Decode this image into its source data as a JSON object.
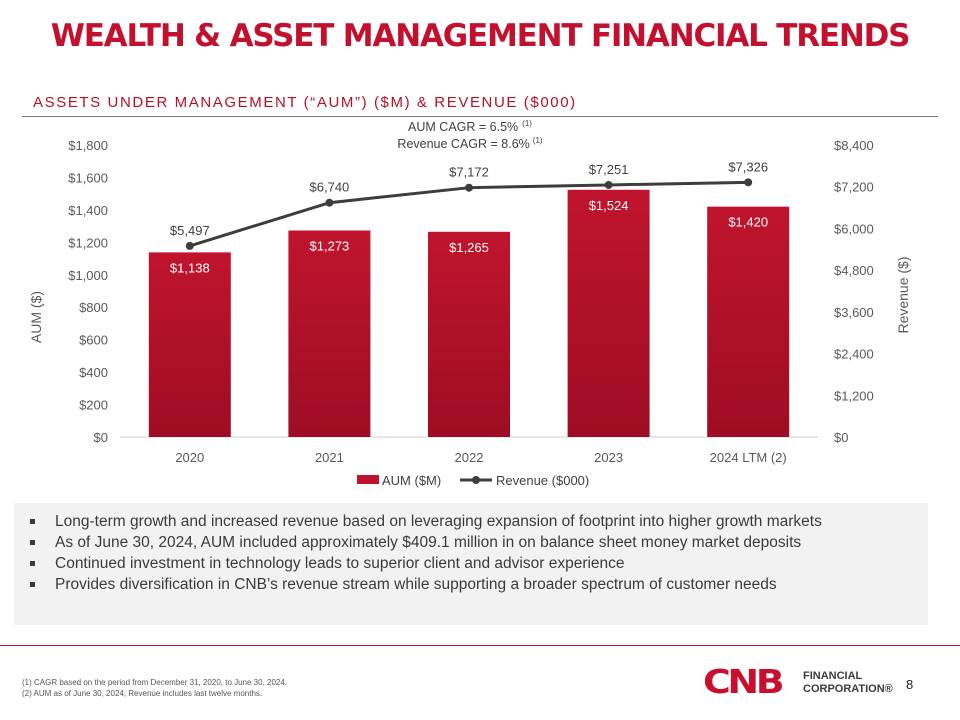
{
  "page": {
    "title": "WEALTH & ASSET MANAGEMENT FINANCIAL TRENDS",
    "subtitle": "ASSETS UNDER MANAGEMENT (“AUM”) ($M) & REVENUE ($000)",
    "page_number": "8",
    "footnotes": [
      "(1) CAGR based on the period from December 31, 2020, to June 30, 2024.",
      "(2) AUM as of June 30, 2024; Revenue includes last twelve months."
    ],
    "logo": {
      "mark": "CNB",
      "line1": "FINANCIAL",
      "line2": "CORPORATION®"
    },
    "bullets": [
      "Long-term growth and increased revenue based on leveraging expansion of footprint into higher growth markets",
      "As of June 30, 2024, AUM included approximately $409.1 million in on balance sheet money market deposits",
      "Continued investment in technology leads to superior client and advisor experience",
      "Provides diversification in CNB’s revenue stream while supporting a broader spectrum of customer needs"
    ]
  },
  "colors": {
    "accent": "#c2112e",
    "bar": "#c0142e",
    "bar_dark": "#9e0d24",
    "line": "#3d3d3d",
    "axis_text": "#595959"
  },
  "chart_data": {
    "type": "bar",
    "categories": [
      "2020",
      "2021",
      "2022",
      "2023",
      "2024 LTM (2)"
    ],
    "series": [
      {
        "name": "AUM ($M)",
        "kind": "bar",
        "axis": "left",
        "values": [
          1138,
          1273,
          1265,
          1524,
          1420
        ],
        "labels": [
          "$1,138",
          "$1,273",
          "$1,265",
          "$1,524",
          "$1,420"
        ]
      },
      {
        "name": "Revenue ($000)",
        "kind": "line",
        "axis": "right",
        "values": [
          5497,
          6740,
          7172,
          7251,
          7326
        ],
        "labels": [
          "$5,497",
          "$6,740",
          "$7,172",
          "$7,251",
          "$7,326"
        ]
      }
    ],
    "ylabel": "AUM ($)",
    "y2label": "Revenue ($)",
    "ylim": [
      0,
      1800
    ],
    "y2lim": [
      0,
      8400
    ],
    "yticks": [
      0,
      200,
      400,
      600,
      800,
      1000,
      1200,
      1400,
      1600,
      1800
    ],
    "ytick_labels": [
      "$0",
      "$200",
      "$400",
      "$600",
      "$800",
      "$1,000",
      "$1,200",
      "$1,400",
      "$1,600",
      "$1,800"
    ],
    "y2ticks": [
      0,
      1200,
      2400,
      3600,
      4800,
      6000,
      7200,
      8400
    ],
    "y2tick_labels": [
      "$0",
      "$1,200",
      "$2,400",
      "$3,600",
      "$4,800",
      "$6,000",
      "$7,200",
      "$8,400"
    ],
    "annotation": {
      "aum_cagr": "AUM CAGR = 6.5%",
      "revenue_cagr": "Revenue CAGR = 8.6%",
      "footnote_ref": "(1)"
    },
    "legend": [
      "AUM ($M)",
      "Revenue ($000)"
    ],
    "legend_position": "bottom",
    "grid": false
  }
}
